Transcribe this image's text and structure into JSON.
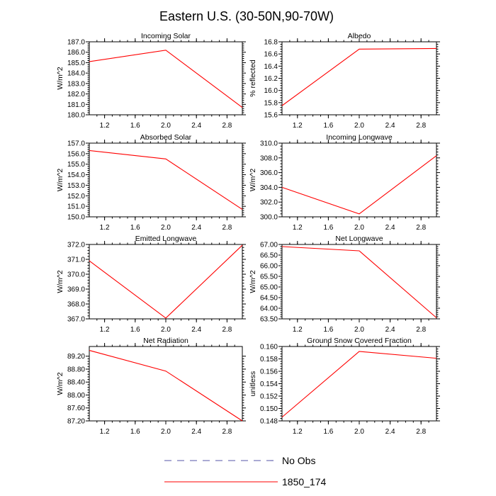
{
  "figure_title": "Eastern U.S. (30-50N,90-70W)",
  "legend": [
    {
      "label": "No Obs",
      "color": "#5555aa",
      "dashed": true
    },
    {
      "label": "1850_174",
      "color": "#ff0000",
      "dashed": false
    }
  ],
  "chart_data": [
    {
      "type": "line",
      "title": "Incoming Solar",
      "ylabel": "W/m^2",
      "x": [
        1.0,
        2.0,
        3.0
      ],
      "values": [
        185.1,
        186.2,
        180.7
      ],
      "xlim": [
        1.0,
        3.0
      ],
      "ylim": [
        180.0,
        187.0
      ],
      "xticks": [
        1.2,
        1.6,
        2.0,
        2.4,
        2.8
      ],
      "xtick_labels": [
        "1.2",
        "1.6",
        "2.0",
        "2.4",
        "2.8"
      ],
      "yticks": [
        180,
        181,
        182,
        183,
        184,
        185,
        186,
        187
      ],
      "ytick_labels": [
        "180.0",
        "181.0",
        "182.0",
        "183.0",
        "184.0",
        "185.0",
        "186.0",
        "187.0"
      ]
    },
    {
      "type": "line",
      "title": "Albedo",
      "ylabel": "% reflected",
      "x": [
        1.0,
        2.0,
        3.0
      ],
      "values": [
        15.75,
        16.68,
        16.69
      ],
      "xlim": [
        1.0,
        3.0
      ],
      "ylim": [
        15.6,
        16.8
      ],
      "xticks": [
        1.2,
        1.6,
        2.0,
        2.4,
        2.8
      ],
      "xtick_labels": [
        "1.2",
        "1.6",
        "2.0",
        "2.4",
        "2.8"
      ],
      "yticks": [
        15.6,
        15.8,
        16.0,
        16.2,
        16.4,
        16.6,
        16.8
      ],
      "ytick_labels": [
        "15.6",
        "15.8",
        "16.0",
        "16.2",
        "16.4",
        "16.6",
        "16.8"
      ]
    },
    {
      "type": "line",
      "title": "Absorbed Solar",
      "ylabel": "W/m^2",
      "x": [
        1.0,
        2.0,
        3.0
      ],
      "values": [
        156.3,
        155.5,
        150.7
      ],
      "xlim": [
        1.0,
        3.0
      ],
      "ylim": [
        150.0,
        157.0
      ],
      "xticks": [
        1.2,
        1.6,
        2.0,
        2.4,
        2.8
      ],
      "xtick_labels": [
        "1.2",
        "1.6",
        "2.0",
        "2.4",
        "2.8"
      ],
      "yticks": [
        150,
        151,
        152,
        153,
        154,
        155,
        156,
        157
      ],
      "ytick_labels": [
        "150.0",
        "151.0",
        "152.0",
        "153.0",
        "154.0",
        "155.0",
        "156.0",
        "157.0"
      ]
    },
    {
      "type": "line",
      "title": "Incoming Longwave",
      "ylabel": "W/m^2",
      "x": [
        1.0,
        2.0,
        3.0
      ],
      "values": [
        304.0,
        300.4,
        308.3
      ],
      "xlim": [
        1.0,
        3.0
      ],
      "ylim": [
        300.0,
        310.0
      ],
      "xticks": [
        1.2,
        1.6,
        2.0,
        2.4,
        2.8
      ],
      "xtick_labels": [
        "1.2",
        "1.6",
        "2.0",
        "2.4",
        "2.8"
      ],
      "yticks": [
        300,
        302,
        304,
        306,
        308,
        310
      ],
      "ytick_labels": [
        "300.0",
        "302.0",
        "304.0",
        "306.0",
        "308.0",
        "310.0"
      ]
    },
    {
      "type": "line",
      "title": "Emitted Longwave",
      "ylabel": "W/m^2",
      "x": [
        1.0,
        2.0,
        3.0
      ],
      "values": [
        370.9,
        367.05,
        371.95
      ],
      "xlim": [
        1.0,
        3.0
      ],
      "ylim": [
        367.0,
        372.0
      ],
      "xticks": [
        1.2,
        1.6,
        2.0,
        2.4,
        2.8
      ],
      "xtick_labels": [
        "1.2",
        "1.6",
        "2.0",
        "2.4",
        "2.8"
      ],
      "yticks": [
        367,
        368,
        369,
        370,
        371,
        372
      ],
      "ytick_labels": [
        "367.0",
        "368.0",
        "369.0",
        "370.0",
        "371.0",
        "372.0"
      ]
    },
    {
      "type": "line",
      "title": "Net Longwave",
      "ylabel": "W/m^2",
      "x": [
        1.0,
        2.0,
        3.0
      ],
      "values": [
        66.9,
        66.7,
        63.55
      ],
      "xlim": [
        1.0,
        3.0
      ],
      "ylim": [
        63.5,
        67.0
      ],
      "xticks": [
        1.2,
        1.6,
        2.0,
        2.4,
        2.8
      ],
      "xtick_labels": [
        "1.2",
        "1.6",
        "2.0",
        "2.4",
        "2.8"
      ],
      "yticks": [
        63.5,
        64.0,
        64.5,
        65.0,
        65.5,
        66.0,
        66.5,
        67.0
      ],
      "ytick_labels": [
        "63.50",
        "64.00",
        "64.50",
        "65.00",
        "65.50",
        "66.00",
        "66.50",
        "67.00"
      ]
    },
    {
      "type": "line",
      "title": "Net Radiation",
      "ylabel": "W/m^2",
      "x": [
        1.0,
        2.0,
        3.0
      ],
      "values": [
        89.38,
        88.74,
        87.2
      ],
      "xlim": [
        1.0,
        3.0
      ],
      "ylim": [
        87.2,
        89.5
      ],
      "xticks": [
        1.2,
        1.6,
        2.0,
        2.4,
        2.8
      ],
      "xtick_labels": [
        "1.2",
        "1.6",
        "2.0",
        "2.4",
        "2.8"
      ],
      "yticks": [
        87.2,
        87.6,
        88.0,
        88.4,
        88.8,
        89.2
      ],
      "ytick_labels": [
        "87.20",
        "87.60",
        "88.00",
        "88.40",
        "88.80",
        "89.20"
      ]
    },
    {
      "type": "line",
      "title": "Ground Snow Covered Fraction",
      "ylabel": "unitless",
      "x": [
        1.0,
        2.0,
        3.0
      ],
      "values": [
        0.1486,
        0.1592,
        0.1581
      ],
      "xlim": [
        1.0,
        3.0
      ],
      "ylim": [
        0.148,
        0.16
      ],
      "xticks": [
        1.2,
        1.6,
        2.0,
        2.4,
        2.8
      ],
      "xtick_labels": [
        "1.2",
        "1.6",
        "2.0",
        "2.4",
        "2.8"
      ],
      "yticks": [
        0.148,
        0.15,
        0.152,
        0.154,
        0.156,
        0.158,
        0.16
      ],
      "ytick_labels": [
        "0.148",
        "0.150",
        "0.152",
        "0.154",
        "0.156",
        "0.158",
        "0.160"
      ]
    }
  ]
}
